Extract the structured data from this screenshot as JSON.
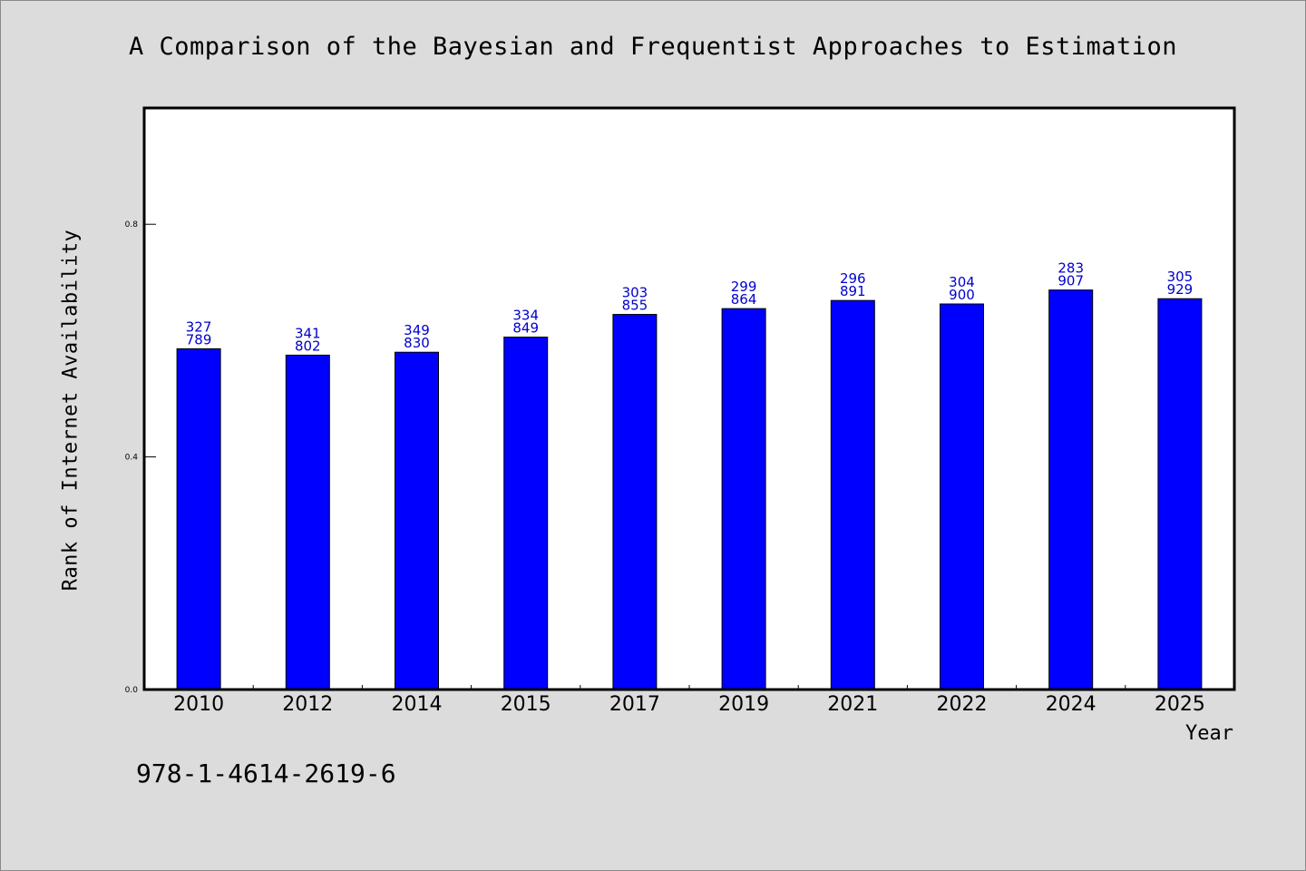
{
  "chart_data": {
    "type": "bar",
    "title": "A Comparison of the Bayesian and Frequentist Approaches to Estimation",
    "xlabel": "Year",
    "ylabel": "Rank of Internet Availability",
    "categories": [
      "2010",
      "2012",
      "2014",
      "2015",
      "2017",
      "2019",
      "2021",
      "2022",
      "2024",
      "2025"
    ],
    "values": [
      0.586,
      0.575,
      0.58,
      0.606,
      0.645,
      0.655,
      0.669,
      0.663,
      0.687,
      0.672
    ],
    "annotations_top": [
      "327",
      "341",
      "349",
      "334",
      "303",
      "299",
      "296",
      "304",
      "283",
      "305"
    ],
    "annotations_bottom": [
      "789",
      "802",
      "830",
      "849",
      "855",
      "864",
      "891",
      "900",
      "907",
      "929"
    ],
    "yticks": [
      "0.0",
      "0.4",
      "0.8"
    ],
    "ytick_values": [
      0.0,
      0.4,
      0.8
    ],
    "ylim": [
      0,
      1.0
    ],
    "bar_color": "#0000ff",
    "label_color": "#0000cc",
    "grid": false,
    "legend": "none"
  },
  "footnote": "978-1-4614-2619-6"
}
